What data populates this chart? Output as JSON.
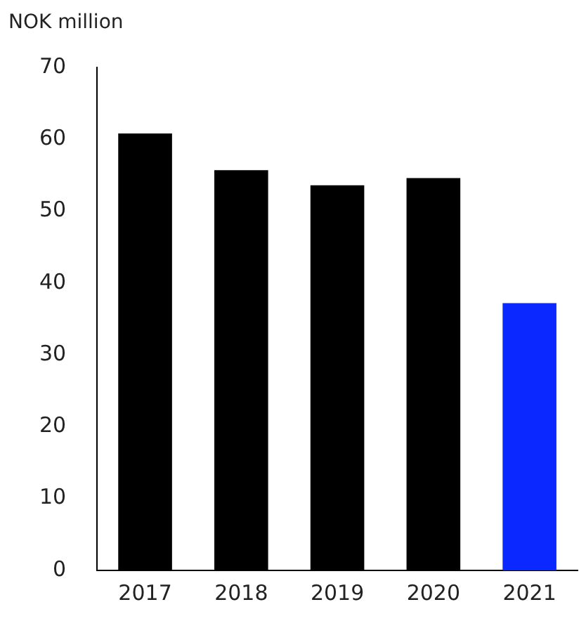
{
  "chart_data": {
    "type": "bar",
    "ylabel": "NOK million",
    "categories": [
      "2017",
      "2018",
      "2019",
      "2020",
      "2021"
    ],
    "values": [
      60.8,
      55.7,
      53.6,
      54.6,
      37.2
    ],
    "colors": [
      "#000000",
      "#000000",
      "#000000",
      "#000000",
      "#0a28ff"
    ],
    "ylim": [
      0,
      70
    ],
    "yticks": [
      0,
      10,
      20,
      30,
      40,
      50,
      60,
      70
    ],
    "grid": false,
    "legend": false
  }
}
